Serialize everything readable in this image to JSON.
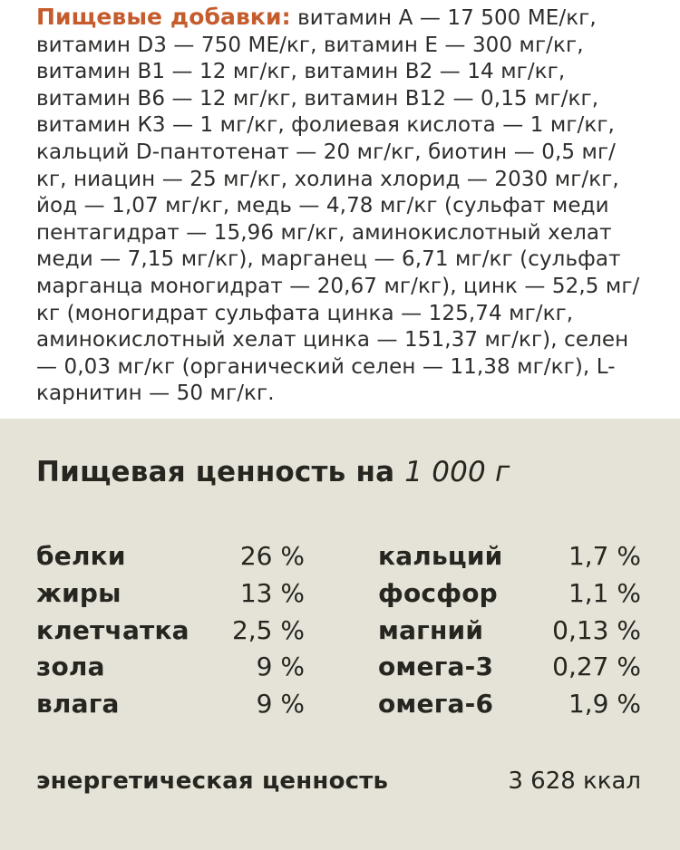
{
  "additives": {
    "title": "Пищевые добавки:",
    "text": "витамин А — 17 500 МЕ/кг, витамин D3 — 750 МЕ/кг, витамин Е — 300 мг/кг, витамин В1 — 12 мг/кг, витамин В2 — 14 мг/кг, витамин В6 — 12 мг/кг, витамин В12 — 0,15 мг/кг, витамин К3 — 1 мг/кг, фолиевая кислота — 1 мг/кг, кальций D-пантотенат — 20 мг/кг, биотин — 0,5 мг/кг, ниацин — 25 мг/кг, холина хлорид — 2030 мг/кг, йод — 1,07 мг/кг, медь — 4,78 мг/кг (сульфат меди пентагидрат — 15,96 мг/кг, аминокислотный хелат меди — 7,15 мг/кг), марганец — 6,71 мг/кг (сульфат марганца моногидрат — 20,67 мг/кг), цинк — 52,5 мг/кг (моногидрат сульфата цинка — 125,74 мг/кг, аминокислотный хелат цинка — 151,37 мг/кг), селен — 0,03 мг/кг (органический селен — 11,38 мг/кг), L-карнитин — 50 мг/кг."
  },
  "nutrition": {
    "heading": "Пищевая ценность на",
    "heading_amount": "1 000 г",
    "left_rows": [
      {
        "label": "белки",
        "value": "26 %"
      },
      {
        "label": "жиры",
        "value": "13 %"
      },
      {
        "label": "клетчатка",
        "value": "2,5 %"
      },
      {
        "label": "зола",
        "value": "9 %"
      },
      {
        "label": "влага",
        "value": "9 %"
      }
    ],
    "right_rows": [
      {
        "label": "кальций",
        "value": "1,7 %"
      },
      {
        "label": "фосфор",
        "value": "1,1 %"
      },
      {
        "label": "магний",
        "value": "0,13 %"
      },
      {
        "label": "омега-3",
        "value": "0,27 %"
      },
      {
        "label": "омега-6",
        "value": "1,9 %"
      }
    ],
    "energy_label": "энергетическая ценность",
    "energy_value": "3 628 ккал"
  },
  "colors": {
    "accent_orange": "#c55c2d",
    "section_beige": "#e5e3d8",
    "text_dark": "#26251f"
  }
}
